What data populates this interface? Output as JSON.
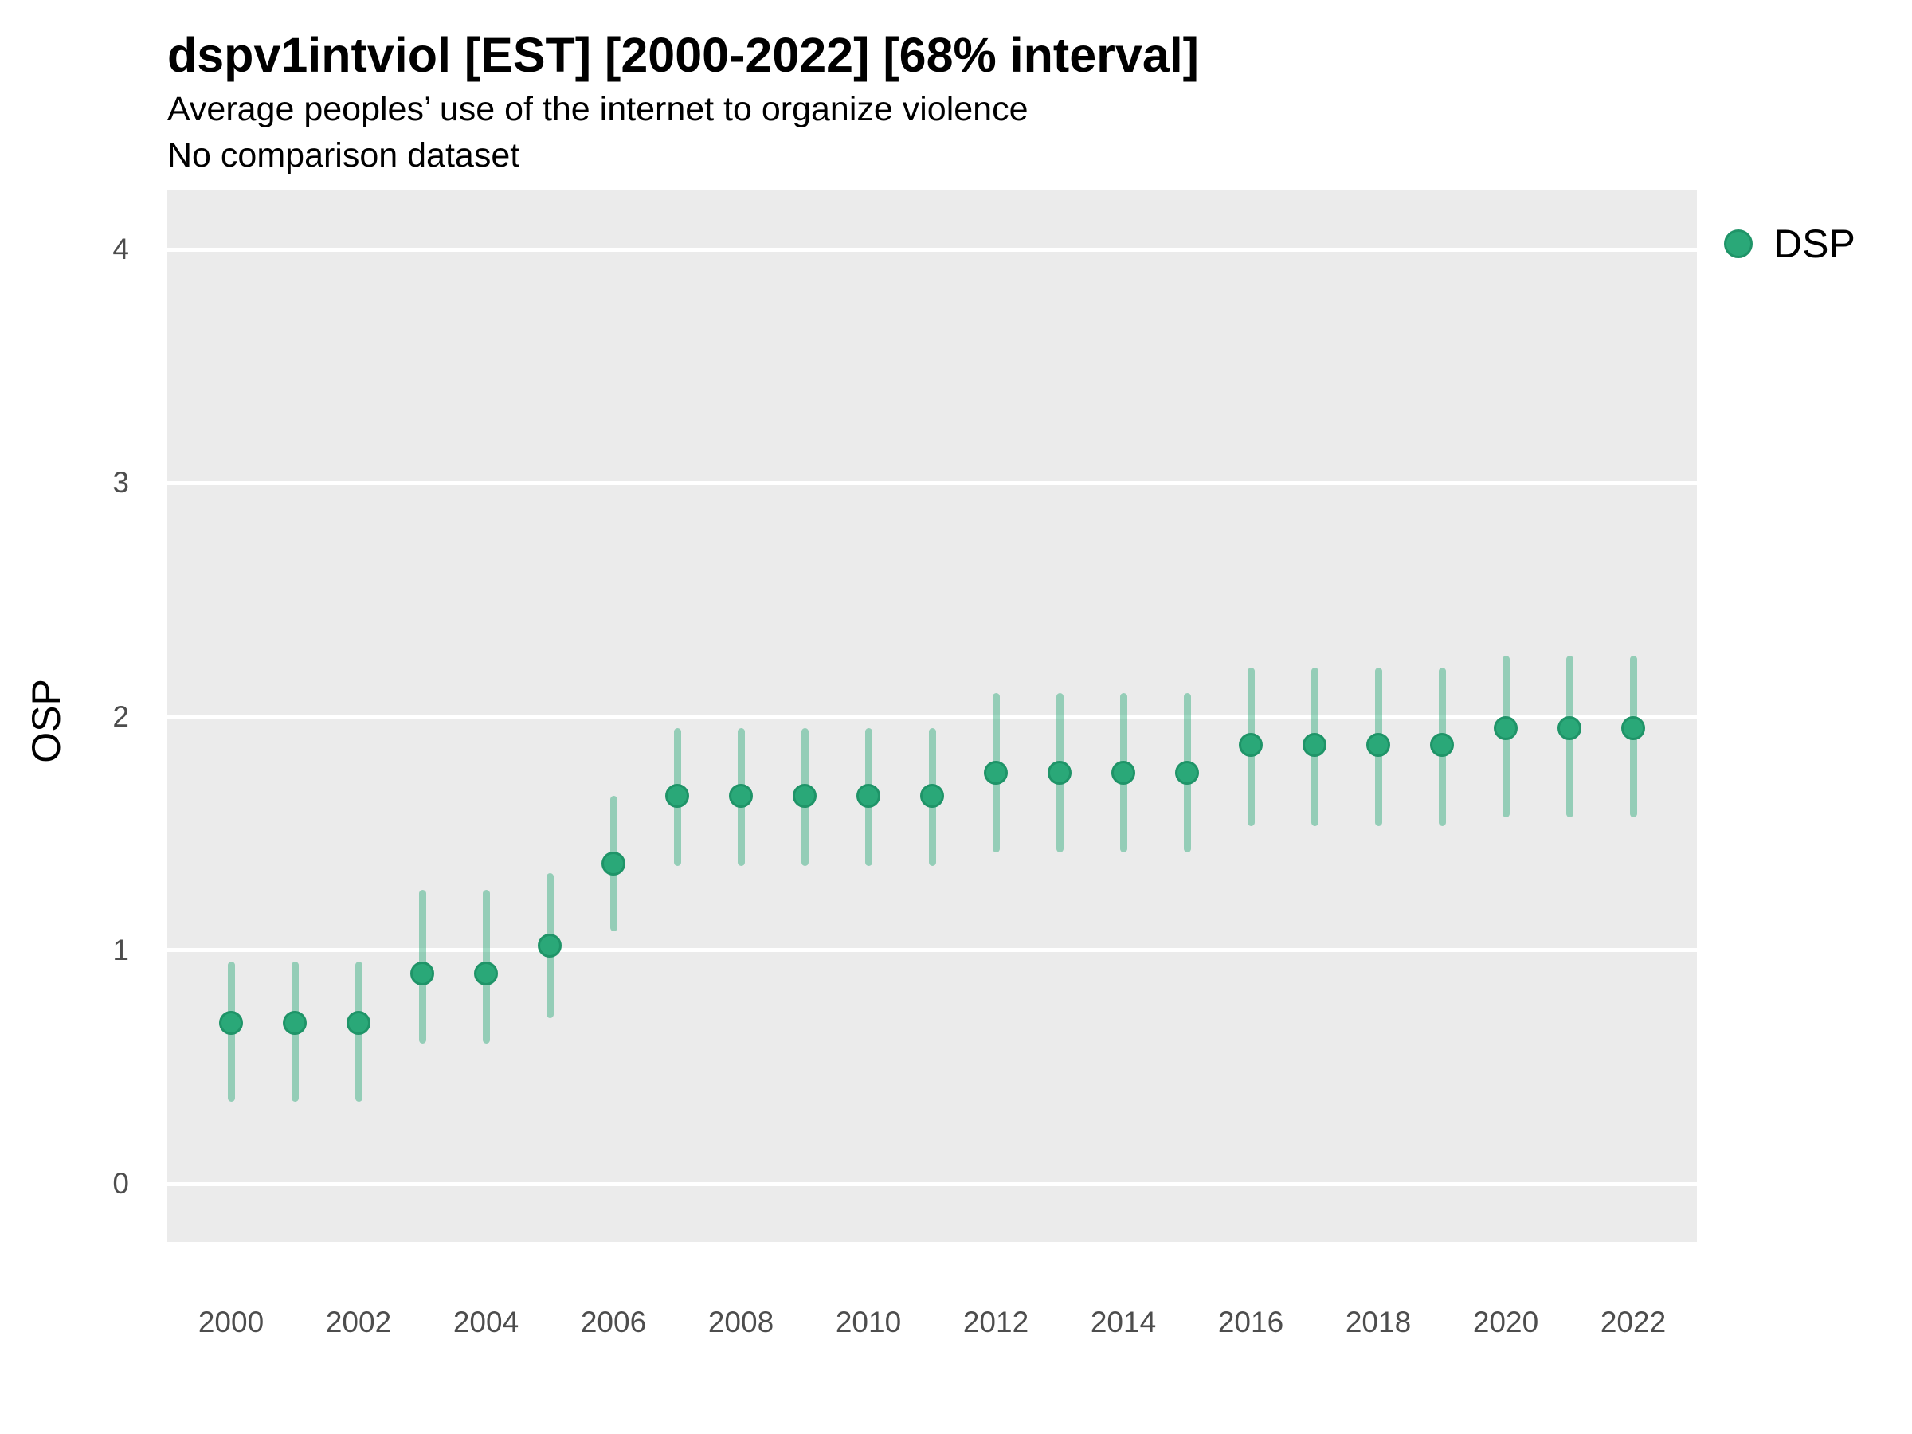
{
  "header": {
    "title": "dspv1intviol [EST] [2000-2022] [68% interval]",
    "subtitle_line1": "Average peoples’ use of the internet to organize violence",
    "subtitle_line2": "No comparison dataset"
  },
  "legend": {
    "label": "DSP"
  },
  "axes": {
    "y_title": "OSP"
  },
  "colors": {
    "point_fill": "#2aa878",
    "point_stroke": "#1f9468",
    "interval": "rgba(42, 168, 120, 0.45)",
    "panel_bg": "#ebebeb",
    "gridline": "#ffffff",
    "tick_text": "#4d4d4d"
  },
  "chart_data": {
    "type": "scatter",
    "title": "dspv1intviol [EST] [2000-2022] [68% interval]",
    "subtitle": "Average peoples’ use of the internet to organize violence | No comparison dataset",
    "xlabel": "",
    "ylabel": "OSP",
    "xlim": [
      1999,
      2023
    ],
    "ylim": [
      -0.25,
      4.25
    ],
    "x_ticks": [
      2000,
      2002,
      2004,
      2006,
      2008,
      2010,
      2012,
      2014,
      2016,
      2018,
      2020,
      2022
    ],
    "y_ticks": [
      0,
      1,
      2,
      3,
      4
    ],
    "grid": "major-horizontal",
    "legend_position": "right-top",
    "series": [
      {
        "name": "DSP",
        "interval_level": "68%",
        "points": [
          {
            "x": 2000,
            "y": 0.69,
            "lo": 0.35,
            "hi": 0.95
          },
          {
            "x": 2001,
            "y": 0.69,
            "lo": 0.35,
            "hi": 0.95
          },
          {
            "x": 2002,
            "y": 0.69,
            "lo": 0.35,
            "hi": 0.95
          },
          {
            "x": 2003,
            "y": 0.9,
            "lo": 0.6,
            "hi": 1.26
          },
          {
            "x": 2004,
            "y": 0.9,
            "lo": 0.6,
            "hi": 1.26
          },
          {
            "x": 2005,
            "y": 1.02,
            "lo": 0.71,
            "hi": 1.33
          },
          {
            "x": 2006,
            "y": 1.37,
            "lo": 1.08,
            "hi": 1.66
          },
          {
            "x": 2007,
            "y": 1.66,
            "lo": 1.36,
            "hi": 1.95
          },
          {
            "x": 2008,
            "y": 1.66,
            "lo": 1.36,
            "hi": 1.95
          },
          {
            "x": 2009,
            "y": 1.66,
            "lo": 1.36,
            "hi": 1.95
          },
          {
            "x": 2010,
            "y": 1.66,
            "lo": 1.36,
            "hi": 1.95
          },
          {
            "x": 2011,
            "y": 1.66,
            "lo": 1.36,
            "hi": 1.95
          },
          {
            "x": 2012,
            "y": 1.76,
            "lo": 1.42,
            "hi": 2.1
          },
          {
            "x": 2013,
            "y": 1.76,
            "lo": 1.42,
            "hi": 2.1
          },
          {
            "x": 2014,
            "y": 1.76,
            "lo": 1.42,
            "hi": 2.1
          },
          {
            "x": 2015,
            "y": 1.76,
            "lo": 1.42,
            "hi": 2.1
          },
          {
            "x": 2016,
            "y": 1.88,
            "lo": 1.53,
            "hi": 2.21
          },
          {
            "x": 2017,
            "y": 1.88,
            "lo": 1.53,
            "hi": 2.21
          },
          {
            "x": 2018,
            "y": 1.88,
            "lo": 1.53,
            "hi": 2.21
          },
          {
            "x": 2019,
            "y": 1.88,
            "lo": 1.53,
            "hi": 2.21
          },
          {
            "x": 2020,
            "y": 1.95,
            "lo": 1.57,
            "hi": 2.26
          },
          {
            "x": 2021,
            "y": 1.95,
            "lo": 1.57,
            "hi": 2.26
          },
          {
            "x": 2022,
            "y": 1.95,
            "lo": 1.57,
            "hi": 2.26
          }
        ]
      }
    ]
  }
}
